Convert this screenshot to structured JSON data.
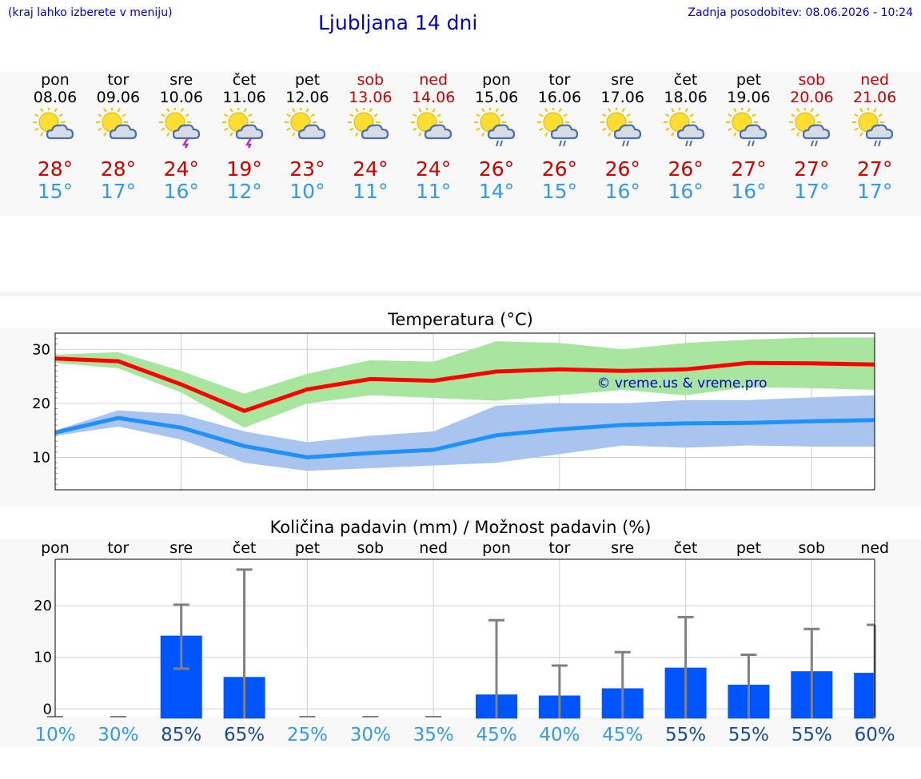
{
  "header": {
    "left_note": "(kraj lahko izberete v meniju)",
    "title": "Ljubljana 14 dni",
    "updated": "Zadnja posodobitev: 08.06.2026 - 10:24"
  },
  "colors": {
    "title_blue": "#0000cc",
    "max_red": "#cc0000",
    "min_blue": "#3399ee",
    "max_line": "#ff0000",
    "max_band": "#a8e6a0",
    "min_line": "#1e90ff",
    "min_band": "#aac4f0",
    "rain_bar": "#0055ff",
    "error_bar": "#808080",
    "prob_low": "#3399ee",
    "prob_high": "#1a4aa0"
  },
  "days": [
    {
      "name": "pon",
      "date": "08.06",
      "weekend": false,
      "icon": "sun-cloud",
      "tmax": "28°",
      "tmin": "15°"
    },
    {
      "name": "tor",
      "date": "09.06",
      "weekend": false,
      "icon": "sun-cloud",
      "tmax": "28°",
      "tmin": "17°"
    },
    {
      "name": "sre",
      "date": "10.06",
      "weekend": false,
      "icon": "sun-cloud-storm",
      "tmax": "24°",
      "tmin": "16°"
    },
    {
      "name": "čet",
      "date": "11.06",
      "weekend": false,
      "icon": "sun-cloud-storm",
      "tmax": "19°",
      "tmin": "12°"
    },
    {
      "name": "pet",
      "date": "12.06",
      "weekend": false,
      "icon": "sun-cloud",
      "tmax": "23°",
      "tmin": "10°"
    },
    {
      "name": "sob",
      "date": "13.06",
      "weekend": true,
      "icon": "sun-cloud",
      "tmax": "24°",
      "tmin": "11°"
    },
    {
      "name": "ned",
      "date": "14.06",
      "weekend": true,
      "icon": "sun-cloud",
      "tmax": "24°",
      "tmin": "11°"
    },
    {
      "name": "pon",
      "date": "15.06",
      "weekend": false,
      "icon": "sun-cloud-rain",
      "tmax": "26°",
      "tmin": "14°"
    },
    {
      "name": "tor",
      "date": "16.06",
      "weekend": false,
      "icon": "sun-cloud-rain",
      "tmax": "26°",
      "tmin": "15°"
    },
    {
      "name": "sre",
      "date": "17.06",
      "weekend": false,
      "icon": "sun-cloud-rain",
      "tmax": "26°",
      "tmin": "16°"
    },
    {
      "name": "čet",
      "date": "18.06",
      "weekend": false,
      "icon": "sun-cloud-rain",
      "tmax": "26°",
      "tmin": "16°"
    },
    {
      "name": "pet",
      "date": "19.06",
      "weekend": false,
      "icon": "sun-cloud-rain",
      "tmax": "27°",
      "tmin": "16°"
    },
    {
      "name": "sob",
      "date": "20.06",
      "weekend": true,
      "icon": "sun-cloud-rain",
      "tmax": "27°",
      "tmin": "17°"
    },
    {
      "name": "ned",
      "date": "21.06",
      "weekend": true,
      "icon": "sun-cloud-rain",
      "tmax": "27°",
      "tmin": "17°"
    }
  ],
  "chart_data": [
    {
      "type": "line",
      "title": "Temperatura (°C)",
      "watermark": "© vreme.us & vreme.pro",
      "ylim": [
        4,
        33
      ],
      "yticks": [
        10,
        20,
        30
      ],
      "grid": true,
      "series": [
        {
          "key": "max",
          "values": [
            28.3,
            27.8,
            23.5,
            18.6,
            22.6,
            24.5,
            24.2,
            25.9,
            26.3,
            26.0,
            26.3,
            27.5,
            27.4,
            27.2
          ],
          "band_low": [
            27.5,
            26.5,
            22.0,
            15.5,
            20.0,
            21.5,
            21.0,
            20.5,
            21.5,
            22.5,
            21.5,
            23.0,
            22.8,
            22.5
          ],
          "band_high": [
            29.0,
            29.5,
            26.0,
            21.8,
            25.5,
            28.0,
            27.7,
            31.5,
            31.2,
            30.0,
            31.2,
            31.8,
            32.2,
            32.2
          ]
        },
        {
          "key": "min",
          "values": [
            14.6,
            17.3,
            15.5,
            12.1,
            10.0,
            10.8,
            11.4,
            14.1,
            15.2,
            16.0,
            16.3,
            16.4,
            16.7,
            16.9
          ],
          "band_low": [
            14.0,
            15.7,
            13.3,
            9.0,
            7.5,
            8.0,
            8.5,
            9.0,
            10.6,
            12.2,
            11.8,
            12.2,
            12.0,
            12.0
          ],
          "band_high": [
            15.0,
            18.7,
            18.0,
            14.8,
            12.8,
            14.0,
            14.8,
            19.6,
            20.0,
            20.0,
            20.6,
            20.6,
            21.1,
            21.5
          ]
        }
      ]
    },
    {
      "type": "bar",
      "title": "Količina padavin (mm) / Možnost padavin (%)",
      "categories": [
        "pon",
        "tor",
        "sre",
        "čet",
        "pet",
        "sob",
        "ned",
        "pon",
        "tor",
        "sre",
        "čet",
        "pet",
        "sob",
        "ned"
      ],
      "values": [
        0,
        0,
        14.2,
        6.2,
        0,
        0,
        0,
        2.8,
        2.6,
        4.0,
        8.0,
        4.7,
        7.3,
        7.0
      ],
      "err_low": [
        0,
        0,
        7.8,
        0,
        0,
        0,
        0,
        0,
        0,
        0,
        0,
        0,
        0,
        0
      ],
      "err_high": [
        0,
        0,
        20.2,
        27,
        0,
        0,
        0,
        17.2,
        8.4,
        11,
        17.8,
        10.5,
        15.5,
        16.3
      ],
      "ylim": [
        -1.5,
        29
      ],
      "yticks": [
        0,
        10,
        20
      ],
      "probabilities": [
        "10%",
        "30%",
        "85%",
        "65%",
        "25%",
        "30%",
        "35%",
        "45%",
        "40%",
        "45%",
        "55%",
        "55%",
        "55%",
        "60%"
      ],
      "prob_dark": [
        false,
        false,
        true,
        true,
        false,
        false,
        false,
        false,
        false,
        false,
        true,
        true,
        true,
        true
      ]
    }
  ]
}
